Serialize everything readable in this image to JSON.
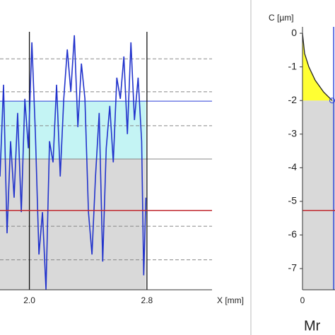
{
  "chart_data": [
    {
      "type": "line",
      "x_label": "X [mm]",
      "color": "#2233cc",
      "xlim": [
        1.8,
        3.243
      ],
      "ylim": [
        -7.63,
        0.99
      ],
      "xticks": [
        {
          "value": 2,
          "label": "2.0"
        },
        {
          "value": 2.8,
          "label": "2.8"
        }
      ],
      "grid": true,
      "x": [
        1.8,
        1.824,
        1.848,
        1.872,
        1.896,
        1.92,
        1.945,
        1.969,
        1.993,
        2.017,
        2.041,
        2.065,
        2.089,
        2.113,
        2.137,
        2.161,
        2.185,
        2.21,
        2.234,
        2.258,
        2.282,
        2.306,
        2.33,
        2.354,
        2.378,
        2.402,
        2.426,
        2.45,
        2.475,
        2.499,
        2.523,
        2.547,
        2.571,
        2.595,
        2.619,
        2.643,
        2.667,
        2.691,
        2.715,
        2.74,
        2.764,
        2.778,
        2.793
      ],
      "series": [
        {
          "values": [
            -4.26,
            -1.53,
            -5.95,
            -3.21,
            -4.89,
            -2.37,
            -5.32,
            -1.95,
            -3.42,
            -0.27,
            -3.0,
            -6.58,
            -5.32,
            -7.63,
            -3.21,
            -3.84,
            -1.53,
            -4.26,
            -1.95,
            -0.48,
            -1.74,
            -0.06,
            -2.79,
            -0.9,
            -1.95,
            -5.32,
            -6.58,
            -4.26,
            -2.37,
            -6.79,
            -3.42,
            -2.16,
            -3.84,
            -1.32,
            -1.95,
            -0.69,
            -3.0,
            -0.27,
            -2.58,
            -1.32,
            -3.21,
            -7.2,
            -4.89
          ]
        }
      ],
      "cut_level": -2.02,
      "cut_color": "#2a3fd8",
      "band_bottom": -3.74,
      "band_color": "#c4f4f4",
      "fill_color": "#d9d9d9",
      "hlines": [
        {
          "value": -0.76,
          "style": "dashed"
        },
        {
          "value": -1.74,
          "style": "dashed"
        },
        {
          "value": -2.75,
          "style": "dashed"
        },
        {
          "value": -3.74,
          "style": "solid"
        },
        {
          "value": -5.74,
          "style": "dashed"
        },
        {
          "value": -6.74,
          "style": "dashed"
        }
      ],
      "red_level": -5.27,
      "red_color": "#c0272d"
    },
    {
      "type": "abbott",
      "y_label": "C [µm]",
      "x_label": "Mr",
      "color": "#222222",
      "xlim": [
        0,
        15.33
      ],
      "ylim": [
        -7.63,
        0.99
      ],
      "xticks": [
        0
      ],
      "yticks": [
        0,
        -1,
        -2,
        -3,
        -4,
        -5,
        -6,
        -7
      ],
      "x": [
        0,
        1,
        3,
        6,
        10,
        14
      ],
      "series": [
        {
          "values": [
            0,
            -0.6,
            -1.0,
            -1.4,
            -1.75,
            -2.0
          ]
        }
      ],
      "fill_color": "#d9d9d9",
      "area_color": "#ffff33",
      "vline": 14.7,
      "vline_color": "#2a3fd8",
      "red_level": -5.27,
      "red_color": "#c0272d"
    }
  ]
}
